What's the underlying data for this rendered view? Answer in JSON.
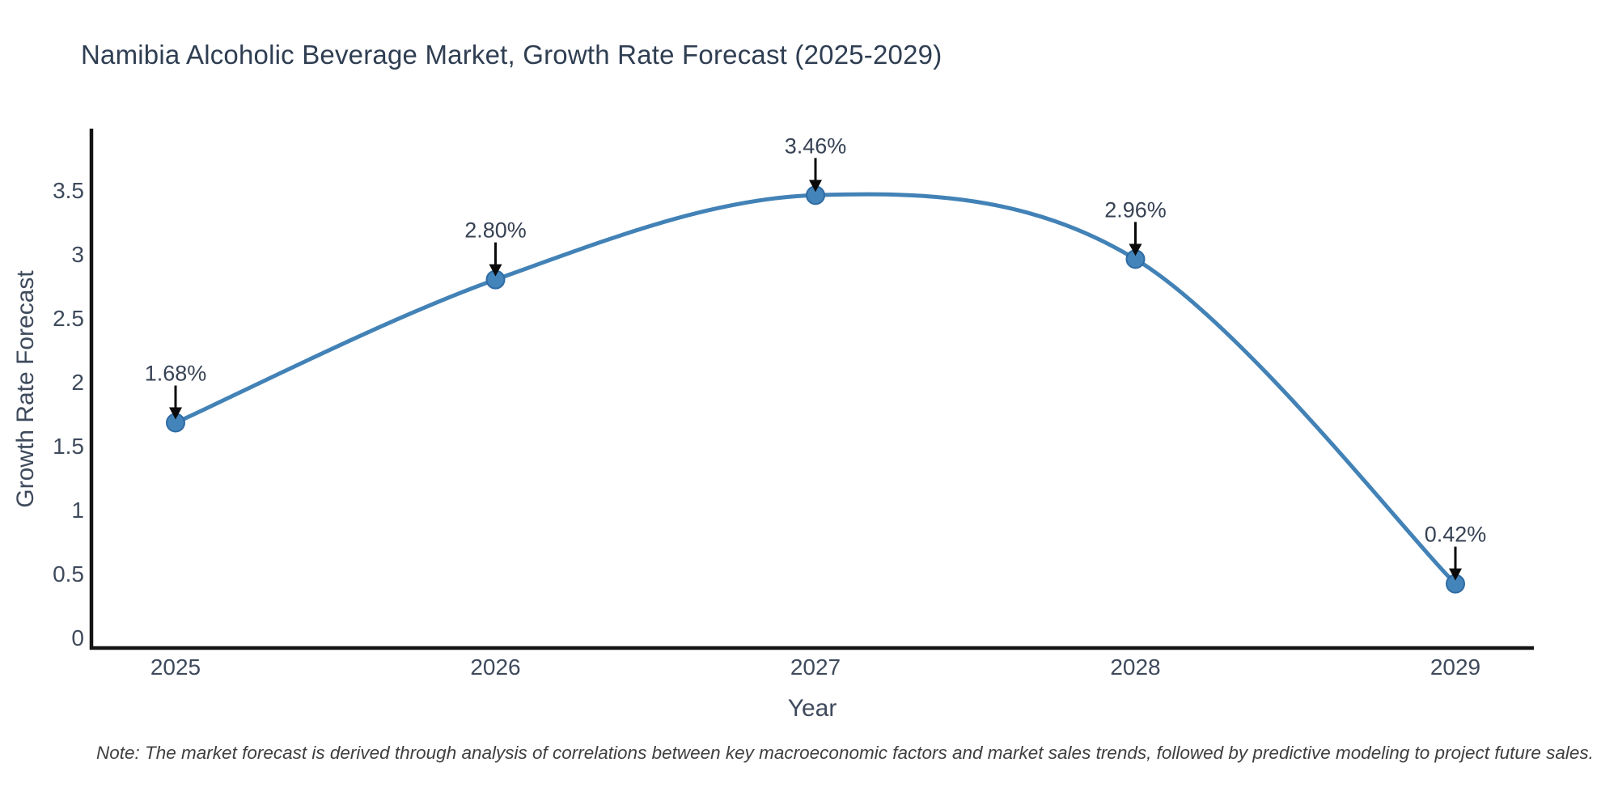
{
  "title": "Namibia Alcoholic Beverage Market, Growth Rate Forecast (2025-2029)",
  "note": "Note: The market forecast is derived through analysis of correlations between key macroeconomic factors and market sales trends, followed by predictive modeling to project future sales.",
  "chart_data": {
    "type": "line",
    "title": "Namibia Alcoholic Beverage Market, Growth Rate Forecast (2025-2029)",
    "x": [
      2025,
      2026,
      2027,
      2028,
      2029
    ],
    "series": [
      {
        "name": "Growth Rate Forecast",
        "values": [
          1.68,
          2.8,
          3.46,
          2.96,
          0.42
        ]
      }
    ],
    "point_labels": [
      "1.68%",
      "2.80%",
      "3.46%",
      "2.96%",
      "0.42%"
    ],
    "xlabel": "Year",
    "ylabel": "Growth Rate Forecast",
    "xticklabels": [
      "2025",
      "2026",
      "2027",
      "2028",
      "2029"
    ],
    "yticks": [
      0,
      0.5,
      1,
      1.5,
      2,
      2.5,
      3,
      3.5
    ],
    "yticklabels": [
      "0",
      "0.5",
      "1",
      "1.5",
      "2",
      "2.5",
      "3",
      "3.5"
    ],
    "ylim": [
      -0.08,
      3.97
    ],
    "grid": false,
    "legend": false,
    "smooth": true,
    "annotation_style": "down-arrow"
  },
  "colors": {
    "line": "#4282b6",
    "marker_fill": "#4385bb",
    "marker_edge": "#2f6ba3",
    "arrow": "#0a0a0a",
    "axis_spine": "#141414",
    "title_text": "#2f3e52",
    "tick_text": "#3e4a5c",
    "annotation_text": "#3742522",
    "note_text": "#3f3f3f"
  }
}
